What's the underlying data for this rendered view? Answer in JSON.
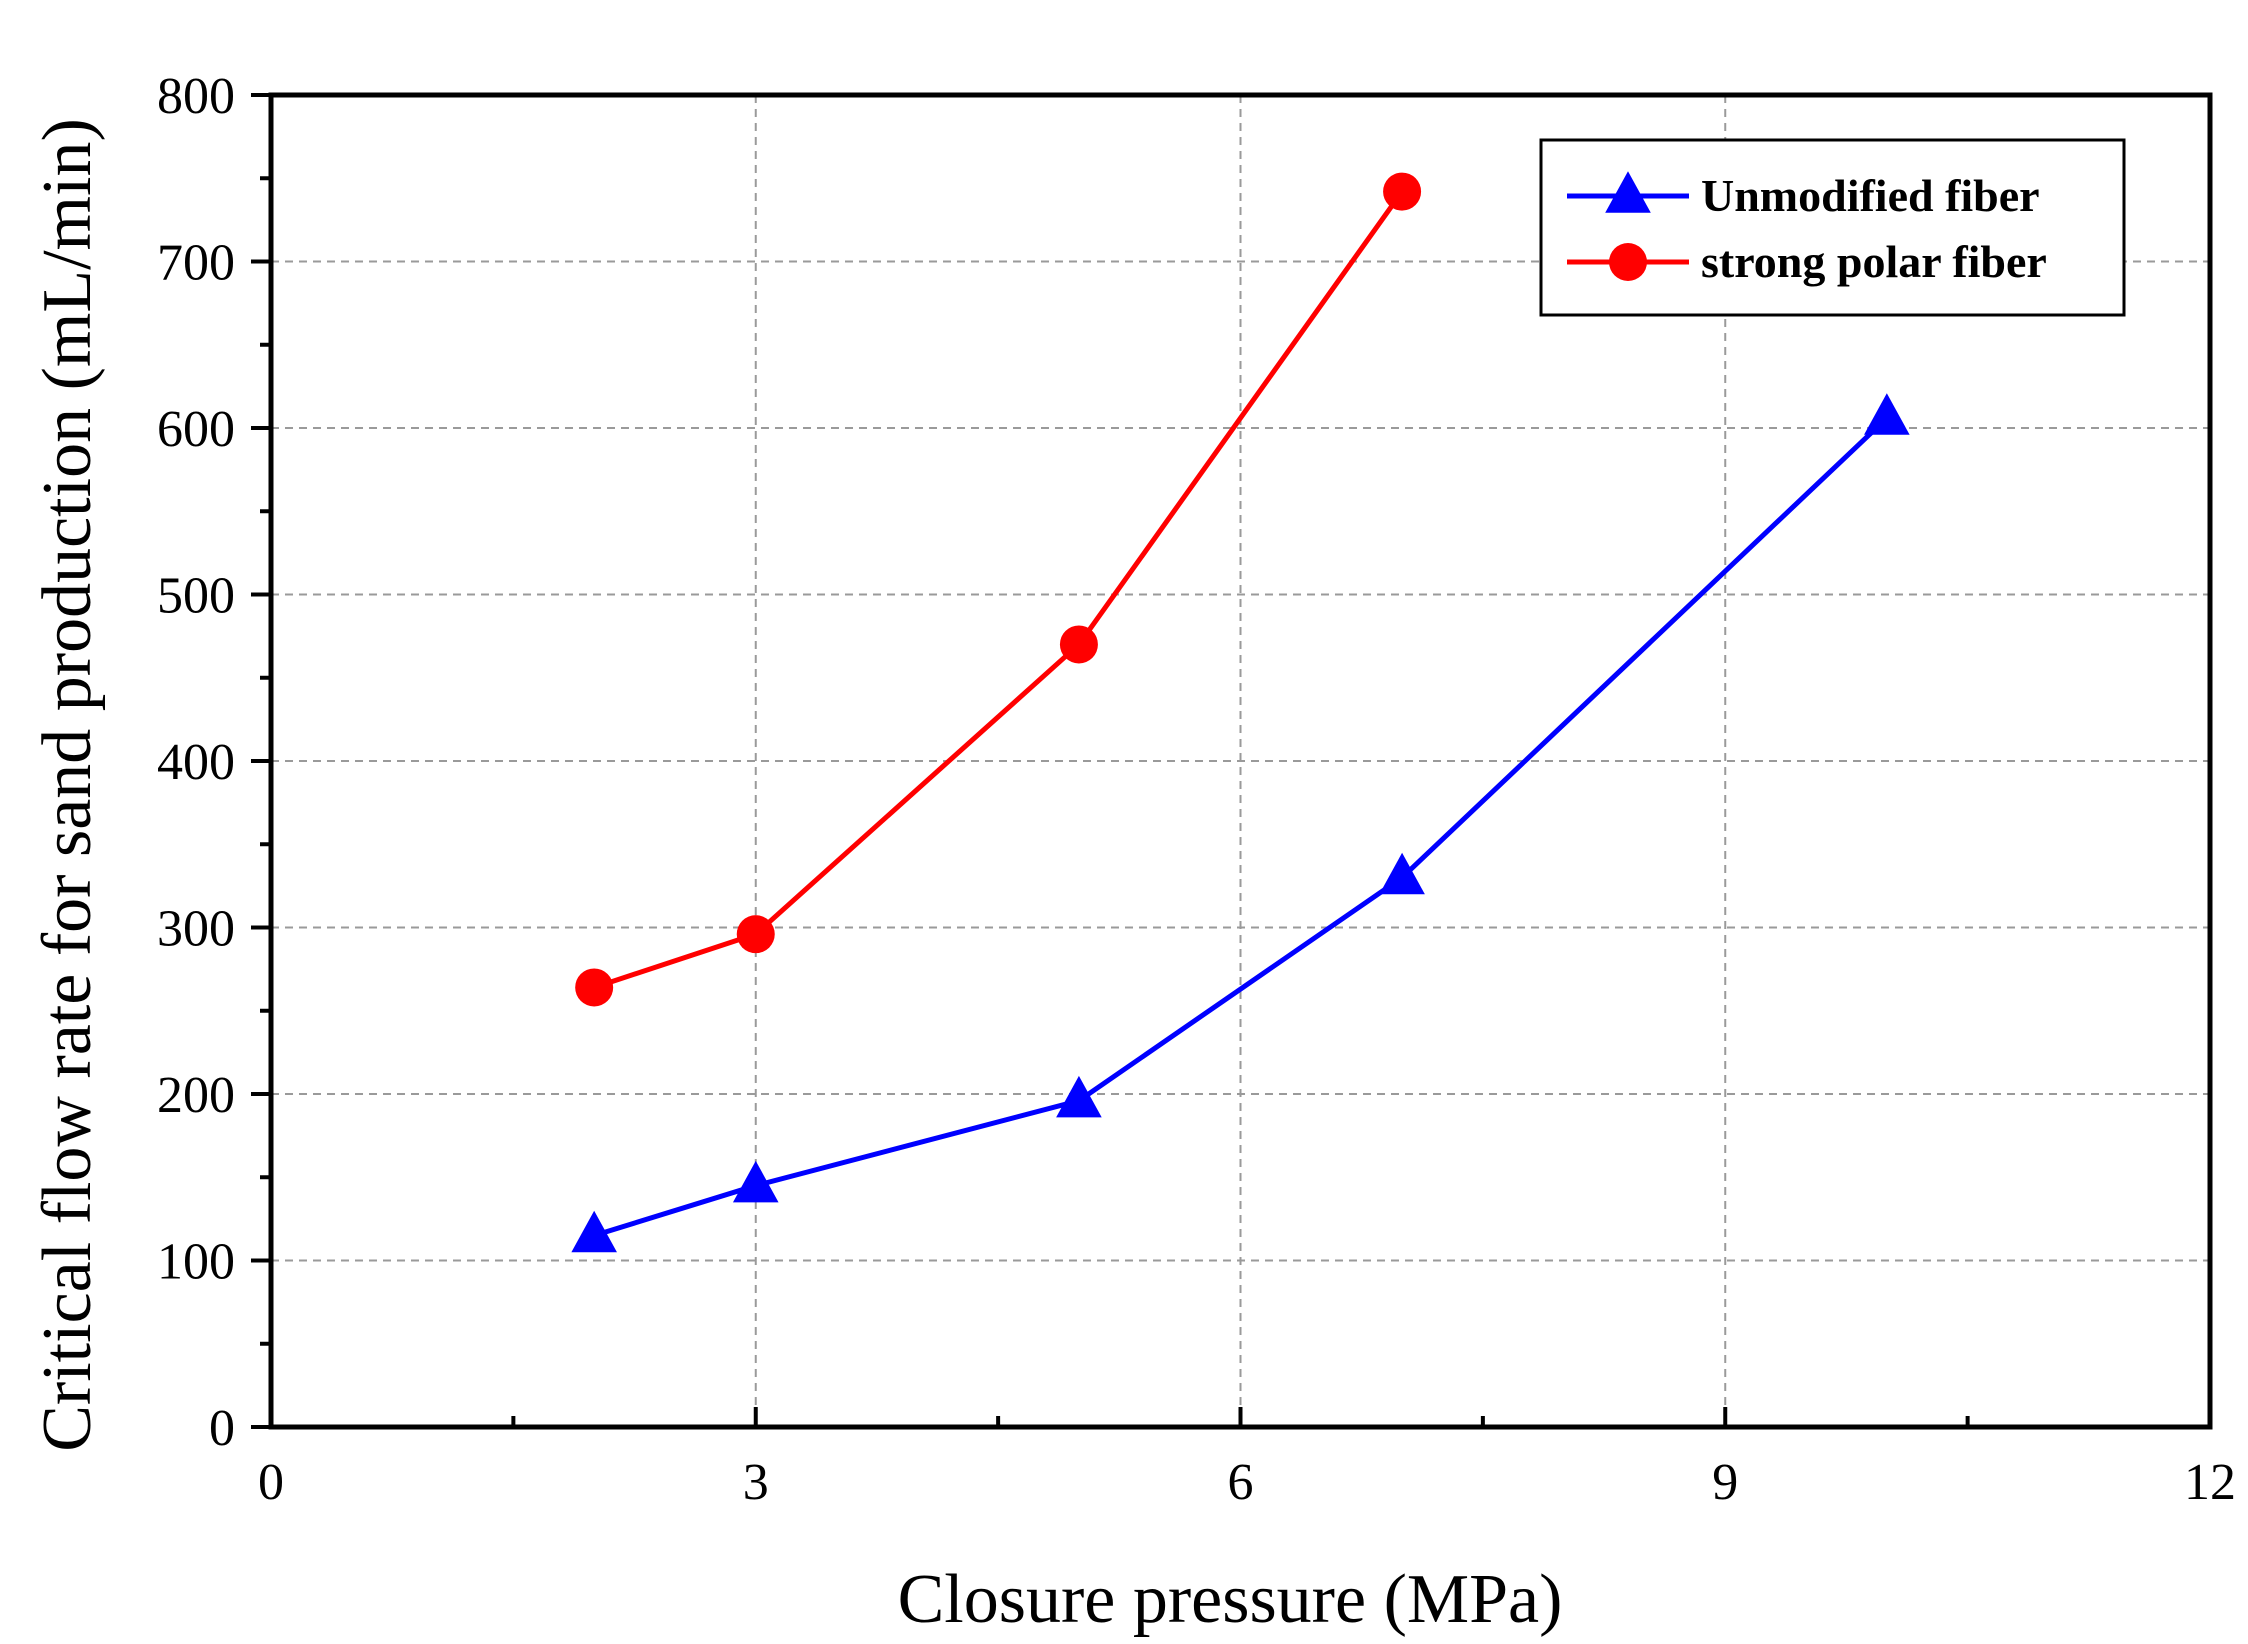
{
  "chart_data": {
    "type": "line",
    "title": "",
    "xlabel": "Closure pressure (MPa)",
    "ylabel": "Critical flow rate for sand production (mL/min)",
    "xlim": [
      0,
      12
    ],
    "ylim": [
      0,
      800
    ],
    "xticks": [
      0,
      3,
      6,
      9,
      12
    ],
    "yticks": [
      0,
      100,
      200,
      300,
      400,
      500,
      600,
      700,
      800
    ],
    "x_minor_step": 1.5,
    "y_minor_step": 50,
    "grid": true,
    "legend_position": "top-right",
    "series": [
      {
        "name": "Unmodified fiber",
        "color": "#0000ff",
        "marker": "triangle",
        "x": [
          2,
          3,
          5,
          7,
          10
        ],
        "y": [
          115,
          145,
          196,
          330,
          606
        ]
      },
      {
        "name": "strong polar fiber",
        "color": "#ff0000",
        "marker": "circle",
        "x": [
          2,
          3,
          5,
          7
        ],
        "y": [
          264,
          296,
          470,
          742
        ]
      }
    ]
  }
}
